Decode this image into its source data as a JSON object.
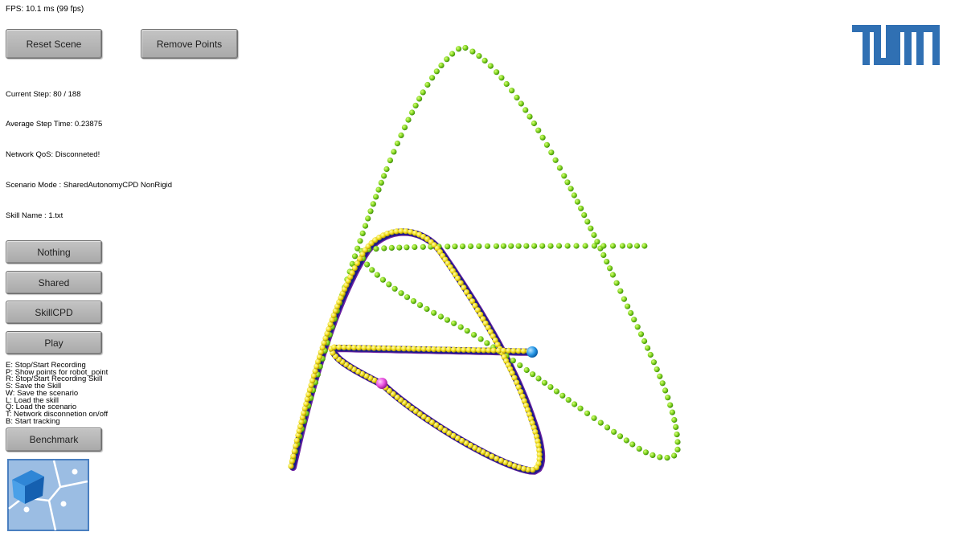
{
  "fps": "FPS: 10.1 ms (99 fps)",
  "buttons": {
    "reset_scene": "Reset Scene",
    "remove_points": "Remove Points",
    "nothing": "Nothing",
    "shared": "Shared",
    "skill_cpd": "SkillCPD",
    "play": "Play",
    "benchmark": "Benchmark"
  },
  "info": {
    "current_step": "Current Step: 80 / 188",
    "avg_step_time": "Average Step Time: 0.23875",
    "network_qos": "Network QoS: Disconneted!",
    "scenario_mode": "Scenario Mode : SharedAutonomyCPD NonRigid",
    "skill_name": "Skill Name : 1.txt"
  },
  "help": [
    "E: Stop/Start Recording",
    "P: Show points for robot_point",
    "R: Stop/Start Recording Skill",
    "S: Save the Skill",
    "W: Save the scenario",
    "L: Load the skill",
    "Q: Load the scenario",
    "T: Network disconnetion on/off",
    "B: Start tracking"
  ],
  "colors": {
    "green_points": "#7fd21e",
    "yellow_points": "#f2e01b",
    "trajectory_blue": "#1a1a8c",
    "trajectory_purple": "#6a1fa0",
    "marker_blue": "#2a9ae8",
    "marker_magenta": "#e84fe0",
    "tum_blue": "#3070b3",
    "app_logo_blue": "#9bbde3"
  },
  "icons": {
    "tum_logo": "tum-logo-icon",
    "app_logo": "app-logo-icon"
  }
}
